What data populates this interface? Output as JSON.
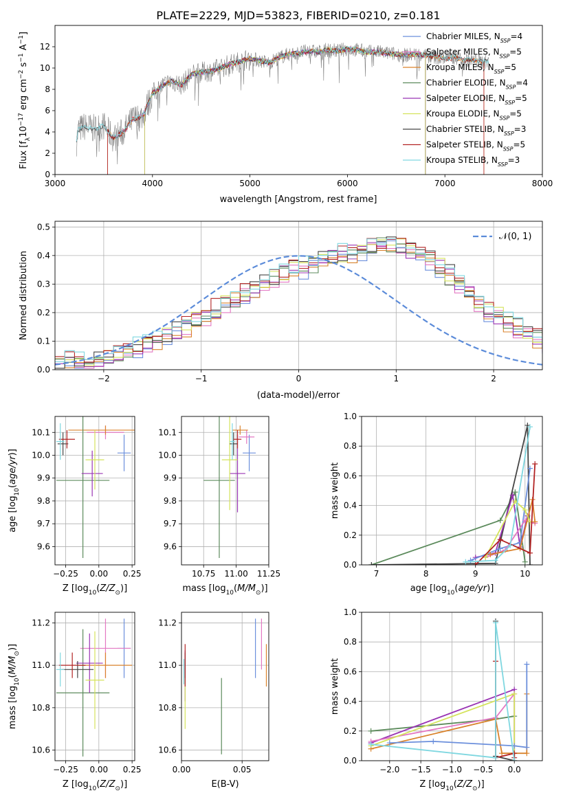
{
  "title": "PLATE=2229, MJD=53823, FIBERID=0210, z=0.181",
  "chart_data": [
    {
      "type": "line",
      "id": "spectrum",
      "xlabel": "wavelength [Angstrom, rest frame]",
      "ylabel": "Flux [f_λ10^-17 erg cm^-2 s^-1 A^-1]",
      "xlim": [
        3000,
        8000
      ],
      "ylim": [
        0,
        14
      ],
      "xticks": [
        3000,
        4000,
        5000,
        6000,
        7000,
        8000
      ],
      "yticks": [
        0,
        2,
        4,
        6,
        8,
        10,
        12
      ],
      "legend_position": "top-right",
      "data_color": "#808080",
      "data_anchors": [
        [
          3220,
          3.1
        ],
        [
          3240,
          4.2
        ],
        [
          3300,
          4.5
        ],
        [
          3400,
          4.3
        ],
        [
          3500,
          4.6
        ],
        [
          3600,
          3.4
        ],
        [
          3700,
          4.0
        ],
        [
          3800,
          5.2
        ],
        [
          3900,
          5.5
        ],
        [
          4000,
          7.6
        ],
        [
          4100,
          8.3
        ],
        [
          4200,
          8.8
        ],
        [
          4300,
          8.4
        ],
        [
          4400,
          9.4
        ],
        [
          4500,
          9.6
        ],
        [
          4600,
          9.7
        ],
        [
          4700,
          10.0
        ],
        [
          4800,
          10.4
        ],
        [
          4900,
          10.6
        ],
        [
          5000,
          10.9
        ],
        [
          5100,
          10.7
        ],
        [
          5200,
          10.5
        ],
        [
          5300,
          11.0
        ],
        [
          5400,
          11.3
        ],
        [
          5500,
          11.4
        ],
        [
          5600,
          11.6
        ],
        [
          5700,
          11.5
        ],
        [
          5800,
          11.7
        ],
        [
          5900,
          11.6
        ],
        [
          6000,
          11.8
        ],
        [
          6100,
          11.7
        ],
        [
          6200,
          11.5
        ],
        [
          6300,
          11.5
        ],
        [
          6400,
          11.4
        ],
        [
          6500,
          11.3
        ],
        [
          6600,
          11.2
        ],
        [
          6700,
          11.3
        ],
        [
          6800,
          11.2
        ],
        [
          6900,
          11.0
        ],
        [
          7000,
          10.9
        ],
        [
          7100,
          11.0
        ],
        [
          7200,
          10.8
        ],
        [
          7300,
          10.7
        ],
        [
          7400,
          10.6
        ],
        [
          7450,
          10.5
        ]
      ],
      "series": [
        {
          "name": "Chabrier MILES, N_SSP=4",
          "color": "#6b8fdc",
          "start": 3540,
          "end": 6800
        },
        {
          "name": "Salpeter MILES, N_SSP=5",
          "color": "#e377c2",
          "start": 3540,
          "end": 6800
        },
        {
          "name": "Kroupa MILES, N_SSP=5",
          "color": "#d9822b",
          "start": 3540,
          "end": 7400
        },
        {
          "name": "Chabrier ELODIE, N_SSP=4",
          "color": "#5b8a5b",
          "start": 3920,
          "end": 6800
        },
        {
          "name": "Salpeter ELODIE, N_SSP=5",
          "color": "#9933b3",
          "start": 3920,
          "end": 6800
        },
        {
          "name": "Kroupa ELODIE, N_SSP=5",
          "color": "#d4e35a",
          "start": 3920,
          "end": 6800
        },
        {
          "name": "Chabrier STELIB, N_SSP=3",
          "color": "#444444",
          "start": 3220,
          "end": 7450
        },
        {
          "name": "Salpeter STELIB, N_SSP=5",
          "color": "#b22222",
          "start": 3540,
          "end": 7400
        },
        {
          "name": "Kroupa STELIB, N_SSP=3",
          "color": "#7fd7e0",
          "start": 3220,
          "end": 7450
        }
      ]
    },
    {
      "type": "histogram",
      "id": "residuals",
      "xlabel": "(data-model)/error",
      "ylabel": "Normed distribution",
      "xlim": [
        -2.5,
        2.5
      ],
      "ylim": [
        0,
        0.52
      ],
      "xticks": [
        -2,
        -1,
        0,
        1,
        2
      ],
      "yticks": [
        0.0,
        0.1,
        0.2,
        0.3,
        0.4,
        0.5
      ],
      "grid": true,
      "legend_position": "top-right",
      "gaussian_label": "𝒩(0, 1)",
      "gaussian_color": "#5b8bd9",
      "bin_width": 0.1,
      "bin_start": -2.5,
      "base_values": [
        0.02,
        0.025,
        0.03,
        0.035,
        0.04,
        0.05,
        0.06,
        0.07,
        0.08,
        0.09,
        0.1,
        0.115,
        0.13,
        0.15,
        0.17,
        0.19,
        0.21,
        0.23,
        0.25,
        0.27,
        0.29,
        0.31,
        0.32,
        0.34,
        0.35,
        0.36,
        0.37,
        0.38,
        0.39,
        0.4,
        0.41,
        0.42,
        0.43,
        0.44,
        0.44,
        0.43,
        0.42,
        0.4,
        0.38,
        0.36,
        0.33,
        0.3,
        0.27,
        0.24,
        0.21,
        0.19,
        0.17,
        0.15,
        0.13,
        0.11
      ],
      "tail_values": [
        0.09,
        0.08,
        0.07,
        0.06,
        0.05,
        0.045,
        0.04,
        0.035,
        0.03,
        0.025
      ],
      "series_colors": [
        "#6b8fdc",
        "#e377c2",
        "#d9822b",
        "#5b8a5b",
        "#9933b3",
        "#d4e35a",
        "#444444",
        "#b22222",
        "#7fd7e0"
      ]
    },
    {
      "type": "scatter",
      "id": "age-vs-Z",
      "xlabel": "Z [log10(Z/Z⊙)]",
      "ylabel": "age [log10(age/yr)]",
      "xlim": [
        -0.33,
        0.27
      ],
      "ylim": [
        9.52,
        10.17
      ],
      "xticks": [
        -0.25,
        0.0,
        0.25
      ],
      "yticks": [
        9.6,
        9.7,
        9.8,
        9.9,
        10.0,
        10.1
      ],
      "grid": true,
      "points": [
        {
          "x": 0.19,
          "y": 10.01,
          "xerr": 0.05,
          "yerr": 0.08,
          "color": "#6b8fdc"
        },
        {
          "x": 0.05,
          "y": 10.1,
          "xerr": 0.14,
          "yerr": 0.03,
          "color": "#e377c2"
        },
        {
          "x": 0.05,
          "y": 10.11,
          "xerr": 0.28,
          "yerr": 0.02,
          "color": "#d9822b"
        },
        {
          "x": -0.12,
          "y": 9.89,
          "xerr": 0.2,
          "yerr": 0.34,
          "color": "#5b8a5b"
        },
        {
          "x": -0.05,
          "y": 9.92,
          "xerr": 0.08,
          "yerr": 0.1,
          "color": "#9933b3"
        },
        {
          "x": -0.03,
          "y": 9.98,
          "xerr": 0.07,
          "yerr": 0.13,
          "color": "#d4e35a"
        },
        {
          "x": -0.27,
          "y": 10.05,
          "xerr": 0.04,
          "yerr": 0.05,
          "color": "#444444"
        },
        {
          "x": -0.24,
          "y": 10.07,
          "xerr": 0.06,
          "yerr": 0.04,
          "color": "#b22222"
        },
        {
          "x": -0.29,
          "y": 10.06,
          "xerr": 0.03,
          "yerr": 0.08,
          "color": "#7fd7e0"
        }
      ]
    },
    {
      "type": "scatter",
      "id": "age-vs-mass",
      "xlabel": "mass [log10(M/M⊙)]",
      "ylabel": "",
      "xlim": [
        10.58,
        11.25
      ],
      "ylim": [
        9.52,
        10.17
      ],
      "xticks": [
        10.75,
        11.0,
        11.25
      ],
      "yticks": [
        9.6,
        9.7,
        9.8,
        9.9,
        10.0,
        10.1
      ],
      "grid": true,
      "points": [
        {
          "x": 11.1,
          "y": 10.01,
          "xerr": 0.05,
          "yerr": 0.08,
          "color": "#6b8fdc"
        },
        {
          "x": 11.08,
          "y": 10.08,
          "xerr": 0.06,
          "yerr": 0.03,
          "color": "#e377c2"
        },
        {
          "x": 11.03,
          "y": 10.11,
          "xerr": 0.06,
          "yerr": 0.02,
          "color": "#d9822b"
        },
        {
          "x": 10.87,
          "y": 9.89,
          "xerr": 0.12,
          "yerr": 0.34,
          "color": "#5b8a5b"
        },
        {
          "x": 11.01,
          "y": 9.92,
          "xerr": 0.06,
          "yerr": 0.17,
          "color": "#9933b3"
        },
        {
          "x": 10.95,
          "y": 9.98,
          "xerr": 0.06,
          "yerr": 0.22,
          "color": "#d4e35a"
        },
        {
          "x": 10.98,
          "y": 10.05,
          "xerr": 0.03,
          "yerr": 0.05,
          "color": "#444444"
        },
        {
          "x": 11.01,
          "y": 10.07,
          "xerr": 0.03,
          "yerr": 0.04,
          "color": "#b22222"
        },
        {
          "x": 10.97,
          "y": 10.06,
          "xerr": 0.02,
          "yerr": 0.08,
          "color": "#7fd7e0"
        }
      ]
    },
    {
      "type": "line",
      "id": "mass-weight-vs-age",
      "xlabel": "age [log10(age/yr)]",
      "ylabel": "mass weight",
      "xlim": [
        6.7,
        10.35
      ],
      "ylim": [
        0,
        1.0
      ],
      "xticks": [
        7,
        8,
        9,
        10
      ],
      "yticks": [
        0.0,
        0.2,
        0.4,
        0.6,
        0.8,
        1.0
      ],
      "grid": true,
      "series": [
        {
          "color": "#5b8a5b",
          "x": [
            6.9,
            9.5,
            9.8,
            10.0
          ],
          "y": [
            0.0,
            0.3,
            0.49,
            0.02
          ]
        },
        {
          "color": "#444444",
          "x": [
            6.9,
            9.4,
            10.05,
            10.1
          ],
          "y": [
            0.0,
            0.01,
            0.94,
            0.0
          ]
        },
        {
          "color": "#9933b3",
          "x": [
            9.0,
            9.4,
            9.75,
            9.9,
            10.05
          ],
          "y": [
            0.05,
            0.08,
            0.47,
            0.12,
            0.33
          ]
        },
        {
          "color": "#6b8fdc",
          "x": [
            8.9,
            9.5,
            9.9,
            10.1
          ],
          "y": [
            0.03,
            0.11,
            0.15,
            0.65
          ]
        },
        {
          "color": "#e377c2",
          "x": [
            9.2,
            9.6,
            10.0,
            10.2
          ],
          "y": [
            0.05,
            0.1,
            0.3,
            0.28
          ]
        },
        {
          "color": "#d9822b",
          "x": [
            9.3,
            9.9,
            10.15,
            10.2
          ],
          "y": [
            0.07,
            0.11,
            0.44,
            0.29
          ]
        },
        {
          "color": "#d4e35a",
          "x": [
            9.2,
            9.8,
            10.0,
            10.1
          ],
          "y": [
            0.05,
            0.43,
            0.37,
            0.29
          ]
        },
        {
          "color": "#b22222",
          "x": [
            9.0,
            9.5,
            10.1,
            10.2
          ],
          "y": [
            0.0,
            0.17,
            0.08,
            0.68
          ]
        },
        {
          "color": "#7fd7e0",
          "x": [
            8.8,
            9.4,
            9.7,
            10.1
          ],
          "y": [
            0.02,
            0.03,
            0.13,
            0.93
          ]
        }
      ]
    },
    {
      "type": "scatter",
      "id": "mass-vs-Z",
      "xlabel": "Z [log10(Z/Z⊙)]",
      "ylabel": "mass [log10(M/M⊙)]",
      "xlim": [
        -0.33,
        0.27
      ],
      "ylim": [
        10.55,
        11.25
      ],
      "xticks": [
        -0.25,
        0.0,
        0.25
      ],
      "yticks": [
        10.6,
        10.8,
        11.0,
        11.2
      ],
      "grid": true,
      "points": [
        {
          "x": 0.19,
          "y": 11.08,
          "xerr": 0.05,
          "yerr": 0.14,
          "color": "#6b8fdc"
        },
        {
          "x": 0.05,
          "y": 11.08,
          "xerr": 0.19,
          "yerr": 0.14,
          "color": "#e377c2"
        },
        {
          "x": 0.05,
          "y": 11.0,
          "xerr": 0.2,
          "yerr": 0.06,
          "color": "#d9822b"
        },
        {
          "x": -0.12,
          "y": 10.87,
          "xerr": 0.2,
          "yerr": 0.3,
          "color": "#5b8a5b"
        },
        {
          "x": -0.07,
          "y": 11.01,
          "xerr": 0.1,
          "yerr": 0.14,
          "color": "#9933b3"
        },
        {
          "x": -0.03,
          "y": 10.93,
          "xerr": 0.07,
          "yerr": 0.23,
          "color": "#d4e35a"
        },
        {
          "x": -0.16,
          "y": 10.98,
          "xerr": 0.12,
          "yerr": 0.04,
          "color": "#444444"
        },
        {
          "x": -0.2,
          "y": 11.0,
          "xerr": 0.1,
          "yerr": 0.06,
          "color": "#b22222"
        },
        {
          "x": -0.29,
          "y": 10.98,
          "xerr": 0.03,
          "yerr": 0.08,
          "color": "#7fd7e0"
        }
      ]
    },
    {
      "type": "scatter",
      "id": "mass-vs-ebv",
      "xlabel": "E(B-V)",
      "ylabel": "",
      "xlim": [
        0.0,
        0.072
      ],
      "ylim": [
        10.55,
        11.25
      ],
      "xticks": [
        0.0,
        0.05
      ],
      "xtick_labels": [
        "0.00",
        "0.05"
      ],
      "yticks": [
        10.6,
        10.8,
        11.0,
        11.2
      ],
      "grid": true,
      "points": [
        {
          "x": 0.061,
          "y": 11.08,
          "yerr": 0.14,
          "color": "#6b8fdc"
        },
        {
          "x": 0.066,
          "y": 11.1,
          "yerr": 0.12,
          "color": "#e377c2"
        },
        {
          "x": 0.07,
          "y": 11.0,
          "yerr": 0.1,
          "color": "#d9822b"
        },
        {
          "x": 0.033,
          "y": 10.76,
          "yerr": 0.18,
          "color": "#5b8a5b"
        },
        {
          "x": 0.003,
          "y": 10.95,
          "yerr": 0.12,
          "color": "#9933b3"
        },
        {
          "x": 0.003,
          "y": 10.83,
          "yerr": 0.13,
          "color": "#d4e35a"
        },
        {
          "x": 0.003,
          "y": 11.0,
          "yerr": 0.06,
          "color": "#444444"
        },
        {
          "x": 0.003,
          "y": 11.0,
          "yerr": 0.1,
          "color": "#b22222"
        },
        {
          "x": 0.002,
          "y": 10.97,
          "yerr": 0.06,
          "color": "#7fd7e0"
        }
      ]
    },
    {
      "type": "line",
      "id": "mass-weight-vs-Z",
      "xlabel": "Z [log10(Z/Z⊙)]",
      "ylabel": "mass weight",
      "xlim": [
        -2.45,
        0.45
      ],
      "ylim": [
        0,
        1.0
      ],
      "xticks": [
        -2.0,
        -1.5,
        -1.0,
        -0.5,
        0.0
      ],
      "yticks": [
        0.0,
        0.2,
        0.4,
        0.6,
        0.8,
        1.0
      ],
      "grid": true,
      "series": [
        {
          "color": "#5b8a5b",
          "x": [
            -2.3,
            -0.3,
            0.0
          ],
          "y": [
            0.2,
            0.28,
            0.3
          ]
        },
        {
          "color": "#9933b3",
          "x": [
            -2.3,
            0.0,
            0.0
          ],
          "y": [
            0.12,
            0.48,
            0.0
          ]
        },
        {
          "color": "#e377c2",
          "x": [
            -2.3,
            -0.3,
            0.0
          ],
          "y": [
            0.13,
            0.29,
            0.45
          ]
        },
        {
          "color": "#d4e35a",
          "x": [
            -2.3,
            0.0,
            0.0
          ],
          "y": [
            0.1,
            0.45,
            0.0
          ]
        },
        {
          "color": "#d9822b",
          "x": [
            -2.3,
            -0.3,
            -0.2,
            0.2,
            0.2
          ],
          "y": [
            0.08,
            0.28,
            0.05,
            0.05,
            0.45
          ]
        },
        {
          "color": "#6b8fdc",
          "x": [
            -2.0,
            -1.3,
            0.0,
            0.2,
            0.2
          ],
          "y": [
            0.12,
            0.13,
            0.1,
            0.09,
            0.65
          ]
        },
        {
          "color": "#444444",
          "x": [
            -0.3,
            -0.3,
            0.0
          ],
          "y": [
            0.94,
            0.03,
            0.0
          ]
        },
        {
          "color": "#b22222",
          "x": [
            -0.3,
            -0.3,
            0.0,
            0.0
          ],
          "y": [
            0.67,
            0.02,
            0.05,
            0.02
          ]
        },
        {
          "color": "#7fd7e0",
          "x": [
            -2.3,
            -0.3,
            -0.3,
            0.0
          ],
          "y": [
            0.11,
            0.02,
            0.93,
            0.0
          ]
        }
      ]
    }
  ]
}
